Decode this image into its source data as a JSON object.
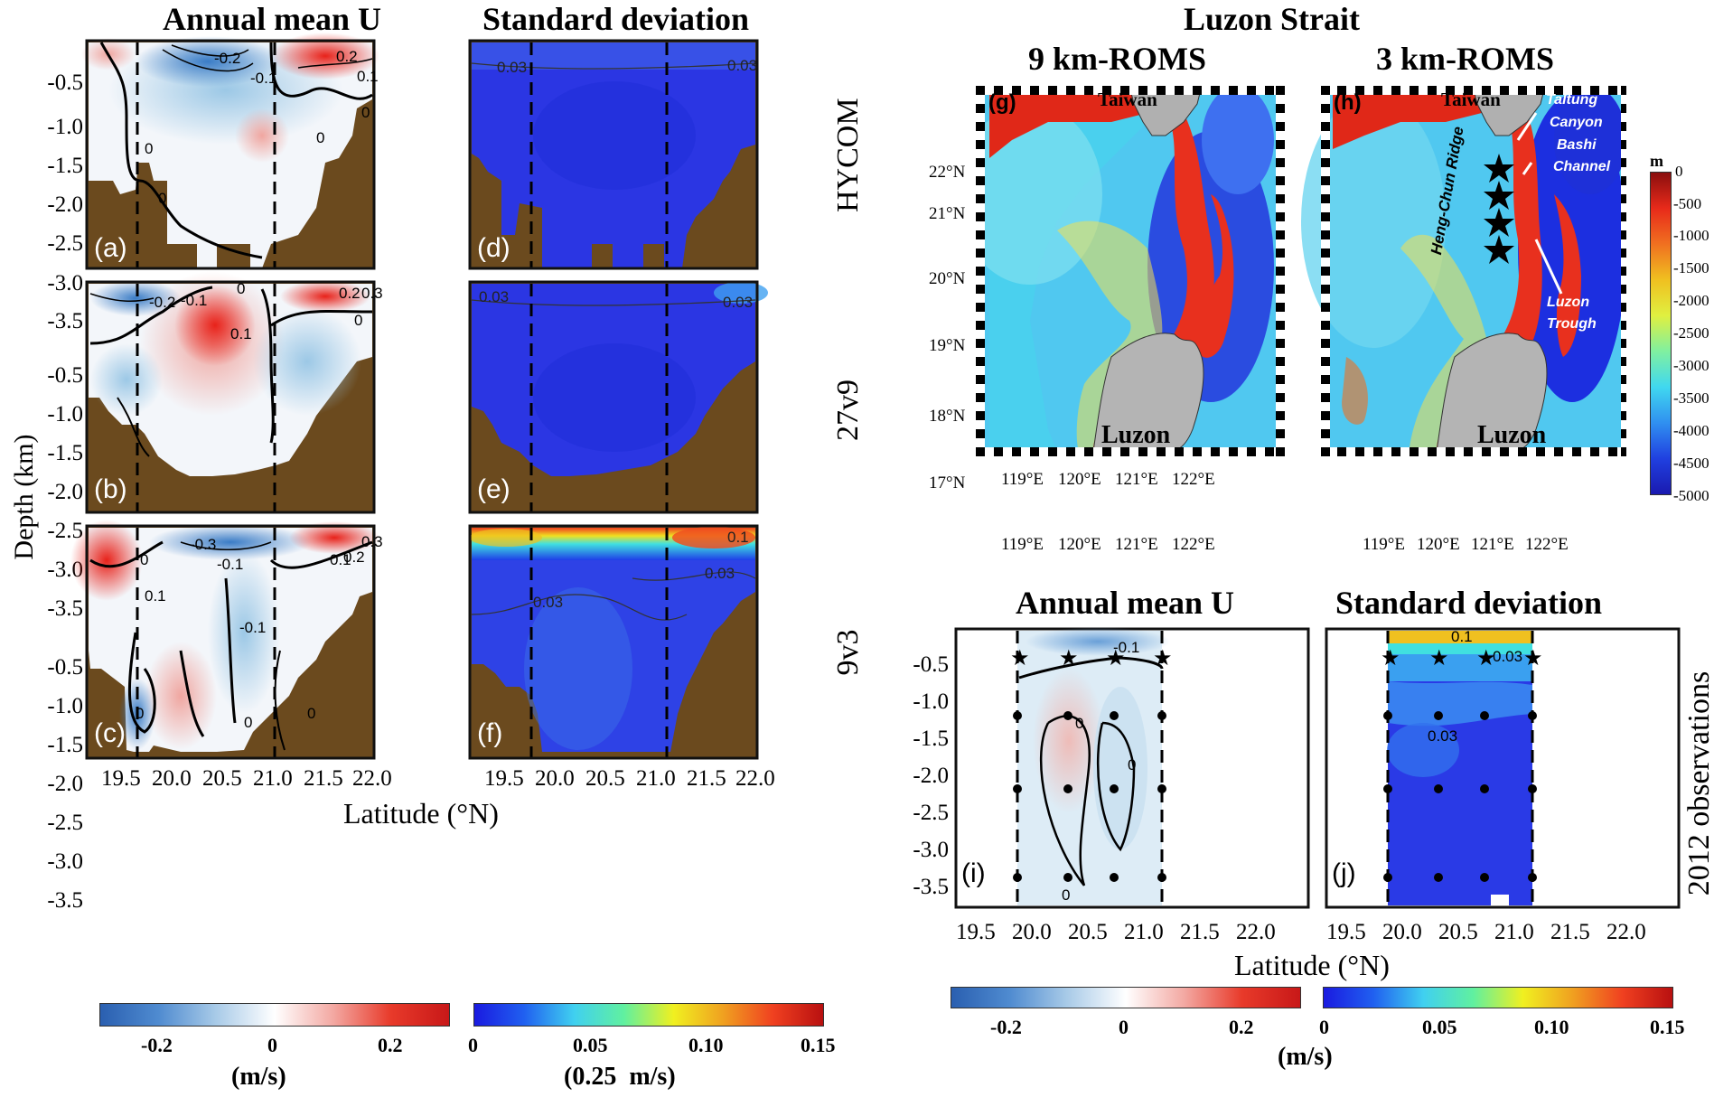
{
  "titles": {
    "col_a": "Annual mean U",
    "col_b": "Standard deviation",
    "luzon": "Luzon Strait",
    "map9": "9 km-ROMS",
    "map3": "3 km-ROMS",
    "obs_mean": "Annual mean U",
    "obs_std": "Standard deviation"
  },
  "row_labels": [
    "HYCOM",
    "27v9",
    "9v3"
  ],
  "obs_label": "2012 observations",
  "panel_labels": [
    "(a)",
    "(b)",
    "(c)",
    "(d)",
    "(e)",
    "(f)",
    "(g)",
    "(h)",
    "(i)",
    "(j)"
  ],
  "depth_axis_label": "Depth (km)",
  "depth_ticks": [
    "-0.5",
    "-1.0",
    "-1.5",
    "-2.0",
    "-2.5",
    "-3.0",
    "-3.5"
  ],
  "lat_ticks": [
    "19.5",
    "20.0",
    "20.5",
    "21.0",
    "21.5",
    "22.0"
  ],
  "lat_axis_label": "Latitude (°N)",
  "map": {
    "lat_ticks": [
      "22°N",
      "21°N",
      "20°N",
      "19°N",
      "18°N",
      "17°N"
    ],
    "lon_ticks": [
      "119°E",
      "120°E",
      "121°E",
      "122°E"
    ],
    "taiwan": "Taiwan",
    "luzon": "Luzon",
    "annotations": [
      "Taltung",
      "Canyon",
      "Bashi",
      "Channel",
      "Heng-Chun Ridge",
      "Luzon",
      "Trough"
    ]
  },
  "contour_labels": {
    "a": [
      "-0.2",
      "-0.1",
      "0.2",
      "0.1",
      "0",
      "0",
      "0",
      "0"
    ],
    "b": [
      "-0.2",
      "-0.1",
      "0",
      "0.1",
      "0.2",
      "0.3",
      "0"
    ],
    "c": [
      "-0.3",
      "-0.1",
      "0.1",
      "0.2",
      "0.3",
      "0",
      "0.1",
      "-0.1",
      "0",
      "0",
      "0"
    ],
    "d": [
      "0.03",
      "0.03"
    ],
    "e": [
      "0.03",
      "0.03"
    ],
    "f": [
      "0.1",
      "0.03",
      "0.03"
    ],
    "i": [
      "-0.1",
      "0",
      "0",
      "0"
    ],
    "j": [
      "0.1",
      "0.03",
      "0.03"
    ]
  },
  "depth_colorbar": {
    "unit": "m",
    "ticks": [
      "0",
      "-500",
      "-1000",
      "-1500",
      "-2000",
      "-2500",
      "-3000",
      "-3500",
      "-4000",
      "-4500",
      "-5000"
    ]
  },
  "colorbar_u": {
    "ticks": [
      "-0.2",
      "0",
      "0.2"
    ],
    "unit": "(m/s)"
  },
  "colorbar_std": {
    "ticks": [
      "0",
      "0.05",
      "0.10",
      "0.15"
    ],
    "unit": "(0.25  m/s)"
  },
  "colorbar_u_obs": {
    "ticks": [
      "-0.2",
      "0",
      "0.2"
    ],
    "unit": "(m/s)"
  },
  "colorbar_std_obs": {
    "ticks": [
      "0",
      "0.05",
      "0.10",
      "0.15"
    ]
  },
  "colors": {
    "bathymetry": "#6b4a1e",
    "mean_neg": "#2f74c0",
    "mean_pos": "#e22b1f",
    "std_low": "#1c2fe8"
  }
}
